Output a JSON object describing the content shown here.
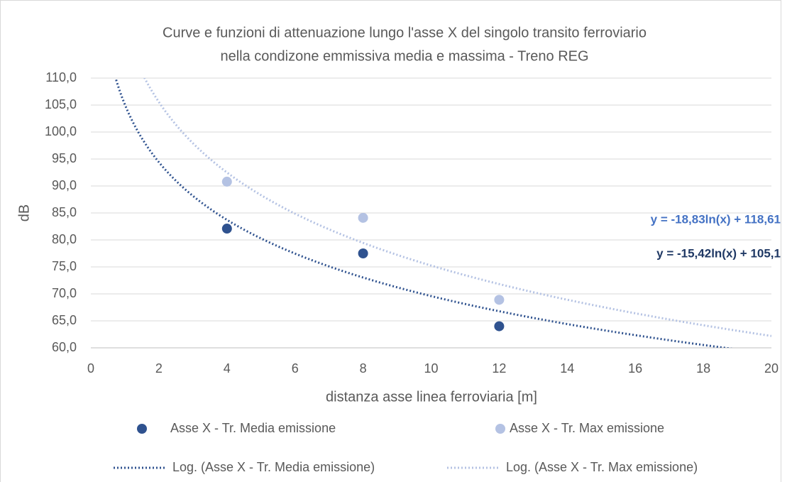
{
  "chart_data": {
    "type": "scatter",
    "title": [
      "Curve e funzioni di attenuazione lungo l'asse X del singolo transito ferroviario",
      "nella condizone emmissiva media e massima - Treno REG"
    ],
    "x_label": "distanza asse linea ferroviaria [m]",
    "y_label": "dB",
    "xlim": [
      0,
      20
    ],
    "xticks": [
      0,
      2,
      4,
      6,
      8,
      10,
      12,
      14,
      16,
      18,
      20
    ],
    "ylim": [
      60,
      110
    ],
    "yticks": [
      {
        "value": 60,
        "label": "60,0"
      },
      {
        "value": 65,
        "label": "65,0"
      },
      {
        "value": 70,
        "label": "70,0"
      },
      {
        "value": 75,
        "label": "75,0"
      },
      {
        "value": 80,
        "label": "80,0"
      },
      {
        "value": 85,
        "label": "85,0"
      },
      {
        "value": 90,
        "label": "90,0"
      },
      {
        "value": 95,
        "label": "95,0"
      },
      {
        "value": 100,
        "label": "100,0"
      },
      {
        "value": 105,
        "label": "105,0"
      },
      {
        "value": 110,
        "label": "110,0"
      }
    ],
    "grid": true,
    "legend": "bottom",
    "series": [
      {
        "name": "Asse X - Tr. Media emissione",
        "color": "#2f528f",
        "x": [
          4,
          8,
          12
        ],
        "values": [
          82.1,
          77.5,
          64.0
        ],
        "trendline": {
          "name": "Log. (Asse X - Tr. Media emissione)",
          "label": "y = -15,42ln(x) + 105,1",
          "slope": -15.42,
          "intercept": 105.1,
          "label_color": "#1f3864"
        }
      },
      {
        "name": "Asse X - Tr. Max emissione",
        "color": "#b4c2e3",
        "x": [
          4,
          8,
          12
        ],
        "values": [
          90.8,
          84.1,
          68.9
        ],
        "trendline": {
          "name": "Log. (Asse X - Tr. Max emissione)",
          "label": "y = -18,83ln(x) + 118,61",
          "slope": -18.83,
          "intercept": 118.61,
          "label_color": "#4472c4"
        }
      }
    ]
  }
}
